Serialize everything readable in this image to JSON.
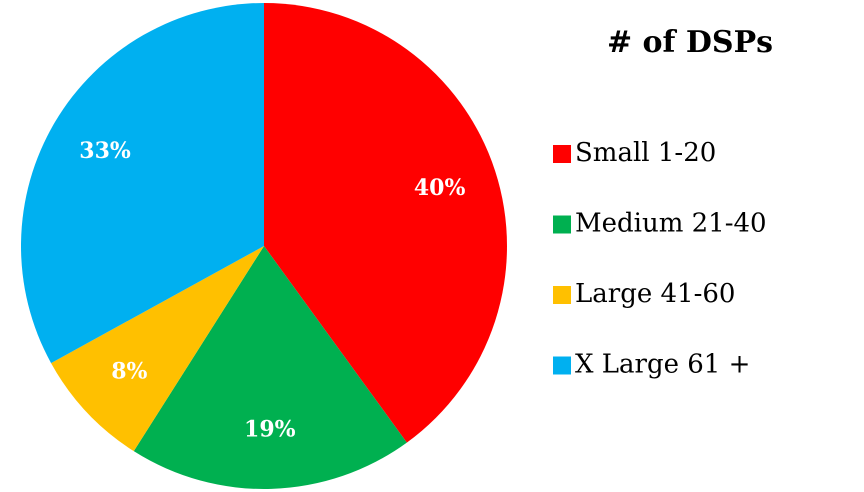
{
  "chart_data": {
    "type": "pie",
    "title": "# of DSPs",
    "categories": [
      "Small 1-20",
      "Medium 21-40",
      "Large 41-60",
      "X Large 61 +"
    ],
    "values": [
      40,
      19,
      8,
      33
    ],
    "value_labels": [
      "40%",
      "19%",
      "8%",
      "33%"
    ],
    "colors": [
      "#ff0000",
      "#00b050",
      "#ffc000",
      "#00b0f0"
    ],
    "legend": "right"
  }
}
